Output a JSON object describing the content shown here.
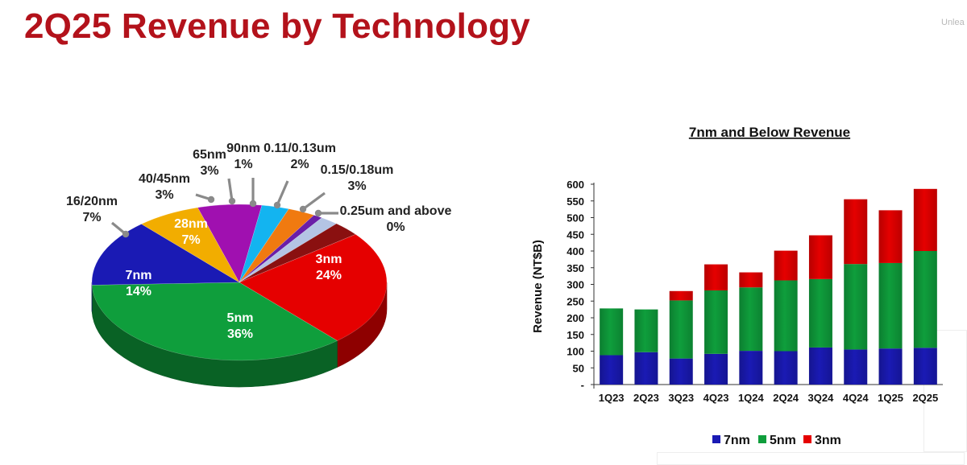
{
  "page": {
    "title": "2Q25 Revenue by Technology",
    "corner_text": "Unlea"
  },
  "chart_data": [
    {
      "type": "pie",
      "title": "",
      "slices": [
        {
          "label": "3nm",
          "value": 24,
          "pct": "24%",
          "color": "#e50000"
        },
        {
          "label": "5nm",
          "value": 36,
          "pct": "36%",
          "color": "#0f9e3c"
        },
        {
          "label": "7nm",
          "value": 14,
          "pct": "14%",
          "color": "#1a1ab4"
        },
        {
          "label": "16/20nm",
          "value": 7,
          "pct": "7%",
          "color": "#f2ad00"
        },
        {
          "label": "28nm",
          "value": 7,
          "pct": "7%",
          "color": "#a010b0"
        },
        {
          "label": "40/45nm",
          "value": 3,
          "pct": "3%",
          "color": "#13b4f0"
        },
        {
          "label": "65nm",
          "value": 3,
          "pct": "3%",
          "color": "#f07a10"
        },
        {
          "label": "90nm",
          "value": 1,
          "pct": "1%",
          "color": "#6a1ea8"
        },
        {
          "label": "0.11/0.13um",
          "value": 2,
          "pct": "2%",
          "color": "#b4c4e4"
        },
        {
          "label": "0.15/0.18um",
          "value": 3,
          "pct": "3%",
          "color": "#8a1010"
        },
        {
          "label": "0.25um and above",
          "value": 0,
          "pct": "0%",
          "color": "#8a1010"
        }
      ]
    },
    {
      "type": "bar",
      "stacked": true,
      "title": "7nm and Below Revenue",
      "xlabel": "",
      "ylabel": "Revenue (NT$B)",
      "ylim": [
        0,
        600
      ],
      "yticks": [
        "-",
        "50",
        "100",
        "150",
        "200",
        "250",
        "300",
        "350",
        "400",
        "450",
        "500",
        "550",
        "600"
      ],
      "categories": [
        "1Q23",
        "2Q23",
        "3Q23",
        "4Q23",
        "1Q24",
        "2Q24",
        "3Q24",
        "4Q24",
        "1Q25",
        "2Q25"
      ],
      "series": [
        {
          "name": "7nm",
          "color": "#1a1ab4",
          "values": [
            88,
            97,
            78,
            92,
            101,
            100,
            111,
            105,
            108,
            110
          ]
        },
        {
          "name": "5nm",
          "color": "#0f9e3c",
          "values": [
            140,
            128,
            174,
            190,
            190,
            212,
            205,
            256,
            256,
            290
          ]
        },
        {
          "name": "3nm",
          "color": "#e50000",
          "values": [
            0,
            0,
            28,
            78,
            45,
            89,
            131,
            194,
            158,
            186
          ]
        }
      ],
      "legend_position": "bottom",
      "grid": false
    }
  ]
}
